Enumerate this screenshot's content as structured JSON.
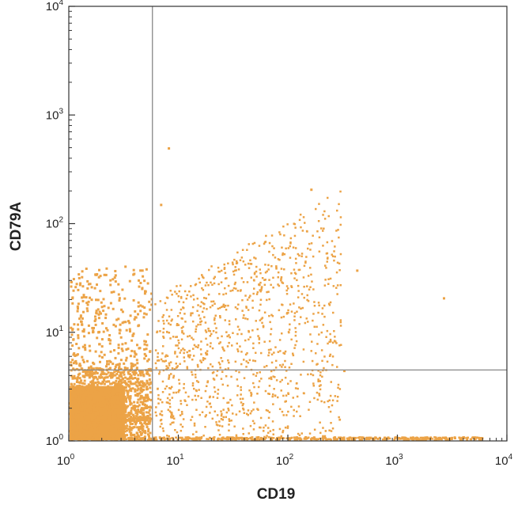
{
  "chart_data": {
    "type": "scatter",
    "style": "flow-cytometry-dot-plot",
    "xlabel": "CD19",
    "ylabel": "CD79A",
    "xscale": "log",
    "yscale": "log",
    "xlim": [
      1,
      10000
    ],
    "ylim": [
      1,
      10000
    ],
    "xticks": [
      {
        "base": "10",
        "exp": "0",
        "value": 1
      },
      {
        "base": "10",
        "exp": "1",
        "value": 10
      },
      {
        "base": "10",
        "exp": "2",
        "value": 100
      },
      {
        "base": "10",
        "exp": "3",
        "value": 1000
      },
      {
        "base": "10",
        "exp": "4",
        "value": 10000
      }
    ],
    "yticks": [
      {
        "base": "10",
        "exp": "0",
        "value": 1
      },
      {
        "base": "10",
        "exp": "1",
        "value": 10
      },
      {
        "base": "10",
        "exp": "2",
        "value": 100
      },
      {
        "base": "10",
        "exp": "3",
        "value": 1000
      },
      {
        "base": "10",
        "exp": "4",
        "value": 10000
      }
    ],
    "quadrant_gates": {
      "x": 5.8,
      "y": 4.5
    },
    "point_color": "#eca346",
    "gate_color": "#888888",
    "populations": [
      {
        "label": "dense cluster",
        "x_range": [
          1,
          5
        ],
        "y_range": [
          1,
          3.5
        ],
        "density": "very high"
      },
      {
        "label": "CD19- scatter",
        "x_range": [
          1,
          5.8
        ],
        "y_range": [
          1,
          40
        ],
        "density": "medium"
      },
      {
        "label": "CD19+ CD79A+ spread",
        "x_range": [
          6,
          300
        ],
        "y_range": [
          1,
          200
        ],
        "density": "medium-low"
      },
      {
        "label": "baseline row",
        "x_range": [
          1,
          6000
        ],
        "y_range": [
          1,
          1.08
        ],
        "density": "high"
      }
    ],
    "outliers": [
      {
        "x": 8,
        "y": 480
      },
      {
        "x": 2600,
        "y": 20
      },
      {
        "x": 420,
        "y": 36
      },
      {
        "x": 320,
        "y": 4.3
      },
      {
        "x": 6.8,
        "y": 145
      },
      {
        "x": 160,
        "y": 200
      }
    ]
  }
}
